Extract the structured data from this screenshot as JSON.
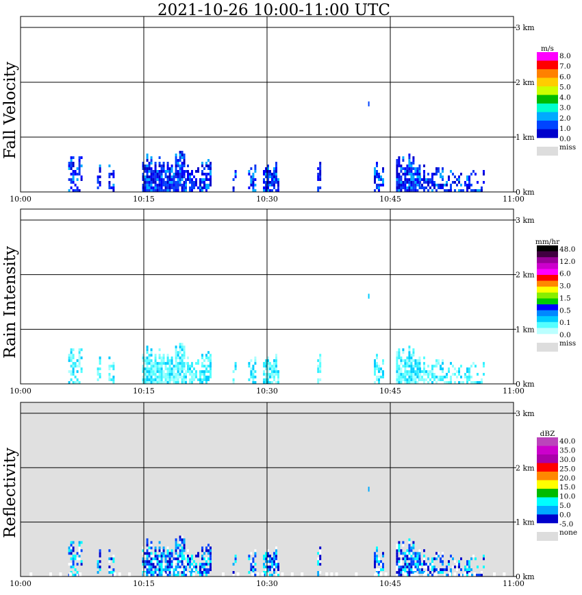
{
  "title": "2021-10-26   10:00-11:00 UTC",
  "colors": {
    "frame": "#000000",
    "missing_bg": "#e0e0e0",
    "background": "#ffffff"
  },
  "chart_data": [
    {
      "type": "heatmap",
      "panel_label": "Fall Velocity",
      "x_tick_labels": [
        "10:00",
        "10:15",
        "10:30",
        "10:45",
        "11:00"
      ],
      "y_tick_labels": [
        "0 km",
        "1 km",
        "2 km",
        "3 km"
      ],
      "xlim": [
        "10:00",
        "11:00"
      ],
      "ylim_km": [
        0,
        3.2
      ],
      "grid": true,
      "background": "#ffffff",
      "colorbar": {
        "unit": "m/s",
        "labels": [
          "8.0",
          "7.0",
          "6.0",
          "5.0",
          "4.0",
          "3.0",
          "2.0",
          "1.0",
          "0.0"
        ],
        "colors": [
          "#ff00ff",
          "#ff0000",
          "#ff8000",
          "#ffcc00",
          "#ccff00",
          "#00bb00",
          "#00ffcc",
          "#00aaff",
          "#0044ff",
          "#0000cc"
        ],
        "missing_label": "miss"
      }
    },
    {
      "type": "heatmap",
      "panel_label": "Rain Intensity",
      "x_tick_labels": [
        "10:00",
        "10:15",
        "10:30",
        "10:45",
        "11:00"
      ],
      "y_tick_labels": [
        "0 km",
        "1 km",
        "2 km",
        "3 km"
      ],
      "xlim": [
        "10:00",
        "11:00"
      ],
      "ylim_km": [
        0,
        3.2
      ],
      "grid": true,
      "background": "#ffffff",
      "colorbar": {
        "unit": "mm/hr",
        "labels": [
          "48.0",
          "12.0",
          "6.0",
          "3.0",
          "1.5",
          "0.5",
          "0.1",
          "0.0"
        ],
        "colors": [
          "#000000",
          "#400040",
          "#990099",
          "#cc00cc",
          "#ff00ff",
          "#ff0000",
          "#ff8800",
          "#ffff00",
          "#88ee00",
          "#00cc00",
          "#0000ff",
          "#0088ff",
          "#00ccff",
          "#55ffff",
          "#bbffff"
        ],
        "missing_label": "miss"
      }
    },
    {
      "type": "heatmap",
      "panel_label": "Reflectivity",
      "x_tick_labels": [
        "10:00",
        "10:15",
        "10:30",
        "10:45",
        "11:00"
      ],
      "y_tick_labels": [
        "0 km",
        "1 km",
        "2 km",
        "3 km"
      ],
      "xlim": [
        "10:00",
        "11:00"
      ],
      "ylim_km": [
        0,
        3.2
      ],
      "grid": true,
      "background": "#e0e0e0",
      "colorbar": {
        "unit": "dBZ",
        "labels": [
          "40.0",
          "35.0",
          "30.0",
          "25.0",
          "20.0",
          "15.0",
          "10.0",
          "5.0",
          "0.0",
          "-5.0"
        ],
        "colors": [
          "#bb44bb",
          "#cc00cc",
          "#aa00aa",
          "#ff0000",
          "#ff8800",
          "#ffff00",
          "#00bb00",
          "#00ffff",
          "#00aaff",
          "#0000cc"
        ],
        "missing_label": "none"
      }
    }
  ]
}
